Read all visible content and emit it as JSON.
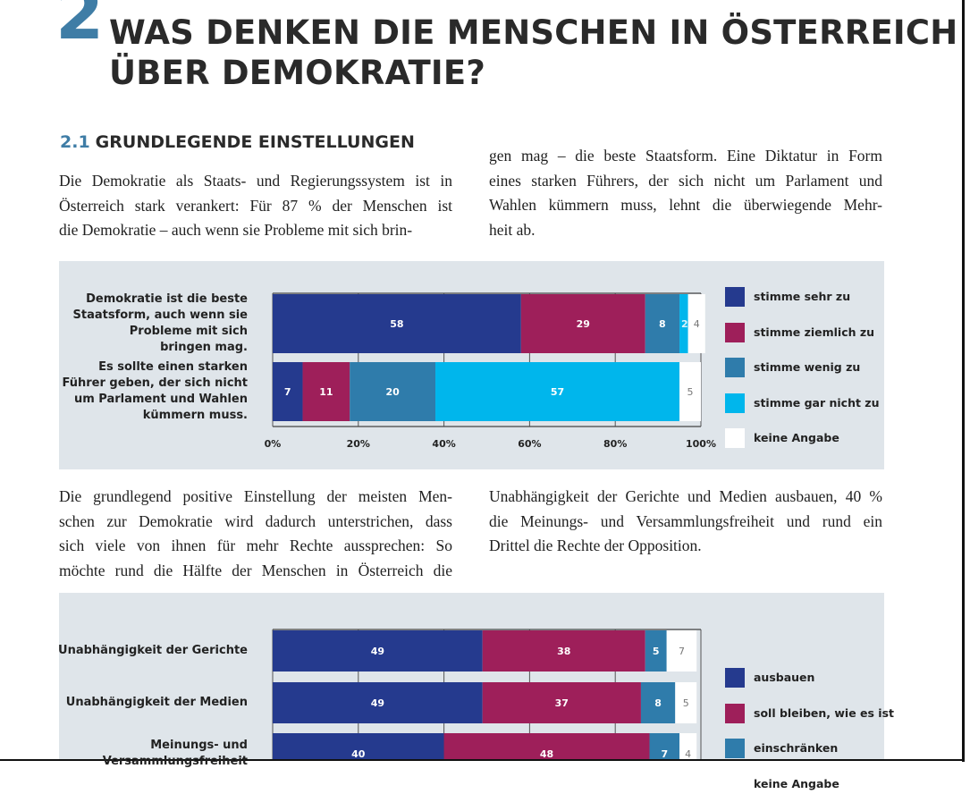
{
  "header": {
    "chapter_number": "2",
    "title_line1": "WAS DENKEN DIE MENSCHEN IN ÖSTERREICH",
    "title_line2": "ÜBER DEMOKRATIE?"
  },
  "section": {
    "number": "2.1",
    "title": "GRUNDLEGENDE EINSTELLUNGEN"
  },
  "text_block_1": {
    "left": [
      "Die Demokratie als Staats- und Regierungssystem ist in",
      "Österreich stark verankert: Für 87 % der Menschen ist",
      "die Demokratie – auch wenn sie Probleme mit sich brin-"
    ],
    "right": [
      "gen mag – die beste Staatsform. Eine Diktatur in Form",
      "eines starken Führers, der sich nicht um Parlament und",
      "Wahlen kümmern muss, lehnt die überwiegende Mehr-",
      "heit ab."
    ]
  },
  "text_block_2": {
    "left": [
      "Die grundlegend positive Einstellung der meisten Men-",
      "schen zur Demokratie wird dadurch unterstrichen, dass",
      "sich viele von ihnen für mehr Rechte aussprechen: So",
      "möchte rund die Hälfte der Menschen in Österreich die"
    ],
    "right": [
      "Unabhängigkeit der Gerichte und Medien ausbauen, 40 %",
      "die Meinungs- und Versammlungsfreiheit und rund ein",
      "Drittel die Rechte der Opposition."
    ]
  },
  "chart_data": [
    {
      "type": "bar",
      "orientation": "horizontal",
      "stacked": true,
      "categories": [
        [
          "Demokratie ist die beste",
          "Staatsform, auch wenn sie",
          "Probleme mit sich",
          "bringen mag."
        ],
        [
          "Es sollte einen starken",
          "Führer geben, der sich nicht",
          "um Parlament und Wahlen",
          "kümmern muss."
        ]
      ],
      "series": [
        {
          "name": "stimme sehr zu",
          "color": "#253a8e",
          "values": [
            58,
            7
          ]
        },
        {
          "name": "stimme ziemlich zu",
          "color": "#9e1f5a",
          "values": [
            29,
            11
          ]
        },
        {
          "name": "stimme wenig zu",
          "color": "#2f7cab",
          "values": [
            8,
            20
          ]
        },
        {
          "name": "stimme gar nicht zu",
          "color": "#00b6ec",
          "values": [
            2,
            57
          ]
        },
        {
          "name": "keine Angabe",
          "color": "#ffffff",
          "values": [
            4,
            5
          ]
        }
      ],
      "x_ticks": [
        "0%",
        "20%",
        "40%",
        "60%",
        "80%",
        "100%"
      ],
      "xlim": [
        0,
        100
      ],
      "grid": true,
      "legend_position": "right"
    },
    {
      "type": "bar",
      "orientation": "horizontal",
      "stacked": true,
      "categories": [
        [
          "Unabhängigkeit der Gerichte"
        ],
        [
          "Unabhängigkeit der Medien"
        ],
        [
          "Meinungs- und",
          "Versammlungsfreiheit"
        ]
      ],
      "series": [
        {
          "name": "ausbauen",
          "color": "#253a8e",
          "values": [
            49,
            49,
            40
          ]
        },
        {
          "name": "soll bleiben, wie es ist",
          "color": "#9e1f5a",
          "values": [
            38,
            37,
            48
          ]
        },
        {
          "name": "einschränken",
          "color": "#2f7cab",
          "values": [
            5,
            8,
            7
          ]
        },
        {
          "name": "keine Angabe",
          "color": "#ffffff",
          "values": [
            7,
            5,
            4
          ]
        }
      ],
      "xlim": [
        0,
        100
      ],
      "grid": true,
      "legend_position": "right"
    }
  ]
}
